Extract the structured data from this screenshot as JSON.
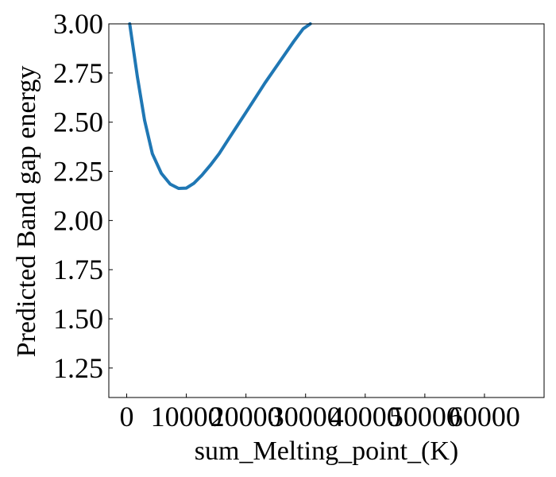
{
  "chart_data": {
    "type": "line",
    "title": "",
    "xlabel": "sum_Melting_point_(K)",
    "ylabel": "Predicted Band gap energy",
    "xlim": [
      -3000,
      70000
    ],
    "ylim": [
      1.1,
      3.0
    ],
    "x_ticks": [
      0,
      10000,
      20000,
      30000,
      40000,
      50000,
      60000
    ],
    "x_tick_labels": [
      "0",
      "10000",
      "20000",
      "30000",
      "40000",
      "50000",
      "60000"
    ],
    "y_ticks": [
      1.25,
      1.5,
      1.75,
      2.0,
      2.25,
      2.5,
      2.75,
      3.0
    ],
    "y_tick_labels": [
      "1.25",
      "1.50",
      "1.75",
      "2.00",
      "2.25",
      "2.50",
      "2.75",
      "3.00"
    ],
    "grid": false,
    "series": [
      {
        "color": "#1f77b4",
        "x": [
          500,
          1800,
          3000,
          4300,
          5800,
          7300,
          8700,
          10000,
          11300,
          12600,
          14000,
          15500,
          17000,
          18500,
          20000,
          21600,
          23200,
          24800,
          26400,
          28000,
          29600,
          30800
        ],
        "y": [
          3.0,
          2.73,
          2.51,
          2.34,
          2.24,
          2.185,
          2.163,
          2.165,
          2.19,
          2.23,
          2.28,
          2.34,
          2.41,
          2.48,
          2.55,
          2.625,
          2.7,
          2.77,
          2.84,
          2.91,
          2.975,
          3.0
        ]
      }
    ]
  }
}
